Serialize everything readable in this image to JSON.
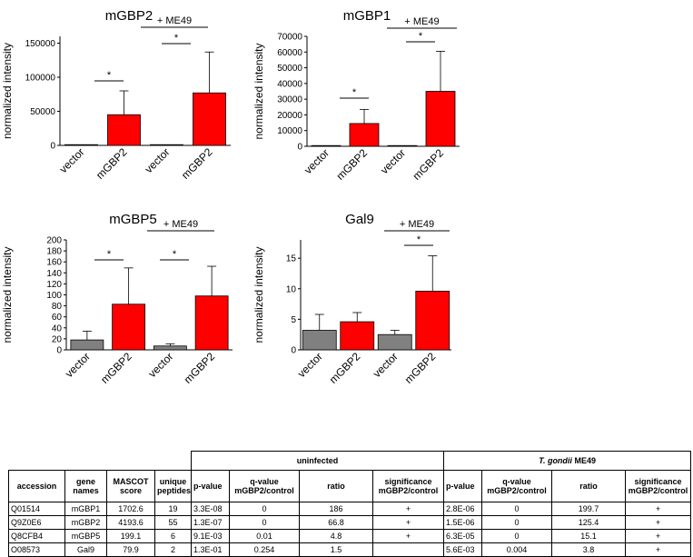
{
  "chart_data": [
    {
      "type": "bar",
      "title": "mGBP2",
      "ylabel": "normalized intensity",
      "categories": [
        "vector",
        "mGBP2",
        "vector",
        "mGBP2"
      ],
      "values": [
        500,
        45000,
        800,
        77000
      ],
      "errors": [
        0,
        35000,
        0,
        60000
      ],
      "colors": [
        "#808080",
        "#ff0000",
        "#808080",
        "#ff0000"
      ],
      "ylim": [
        0,
        160000
      ],
      "yticks": [
        0,
        50000,
        100000,
        150000
      ],
      "group_label": "+ ME49",
      "significance": [
        {
          "pair": [
            0,
            1
          ],
          "label": "*"
        },
        {
          "pair": [
            2,
            3
          ],
          "label": "*"
        }
      ]
    },
    {
      "type": "bar",
      "title": "mGBP1",
      "ylabel": "normalized intensity",
      "categories": [
        "vector",
        "mGBP2",
        "vector",
        "mGBP2"
      ],
      "values": [
        100,
        14500,
        300,
        35000
      ],
      "errors": [
        0,
        9000,
        0,
        25500
      ],
      "colors": [
        "#808080",
        "#ff0000",
        "#808080",
        "#ff0000"
      ],
      "ylim": [
        0,
        70000
      ],
      "yticks": [
        0,
        10000,
        20000,
        30000,
        40000,
        50000,
        60000,
        70000
      ],
      "group_label": "+ ME49",
      "significance": [
        {
          "pair": [
            0,
            1
          ],
          "label": "*"
        },
        {
          "pair": [
            2,
            3
          ],
          "label": "*"
        }
      ]
    },
    {
      "type": "bar",
      "title": "mGBP5",
      "ylabel": "normalized intensity",
      "categories": [
        "vector",
        "mGBP2",
        "vector",
        "mGBP2"
      ],
      "values": [
        18,
        83,
        7,
        98
      ],
      "errors": [
        16,
        66,
        4,
        54
      ],
      "colors": [
        "#808080",
        "#ff0000",
        "#808080",
        "#ff0000"
      ],
      "ylim": [
        0,
        200
      ],
      "yticks": [
        0,
        20,
        40,
        60,
        80,
        100,
        120,
        140,
        160,
        180,
        200
      ],
      "group_label": "+ ME49",
      "significance": [
        {
          "pair": [
            0,
            1
          ],
          "label": "*"
        },
        {
          "pair": [
            2,
            3
          ],
          "label": "*"
        }
      ]
    },
    {
      "type": "bar",
      "title": "Gal9",
      "ylabel": "normalized intensity",
      "categories": [
        "vector",
        "mGBP2",
        "vector",
        "mGBP2"
      ],
      "values": [
        3.2,
        4.6,
        2.5,
        9.6
      ],
      "errors": [
        2.6,
        1.5,
        0.7,
        5.8
      ],
      "colors": [
        "#808080",
        "#ff0000",
        "#808080",
        "#ff0000"
      ],
      "ylim": [
        0,
        18
      ],
      "yticks": [
        0,
        5,
        10,
        15
      ],
      "group_label": "+ ME49",
      "significance": [
        {
          "pair": [
            2,
            3
          ],
          "label": "*"
        }
      ]
    },
    {
      "type": "table",
      "group_headers": [
        "uninfected",
        "T. gondii",
        "ME49"
      ],
      "columns": [
        "accession",
        "gene names",
        "MASCOT score",
        "unique peptides",
        "p-value",
        "q-value mGBP2/control",
        "ratio",
        "significance mGBP2/control",
        "p-value",
        "q-value mGBP2/control",
        "ratio",
        "significance mGBP2/control"
      ],
      "rows": [
        [
          "Q01514",
          "mGBP1",
          "1702.6",
          "19",
          "3.3E-08",
          "0",
          "186",
          "+",
          "2.8E-06",
          "0",
          "199.7",
          "+"
        ],
        [
          "Q9Z0E6",
          "mGBP2",
          "4193.6",
          "55",
          "1.3E-07",
          "0",
          "66.8",
          "+",
          "1.5E-06",
          "0",
          "125.4",
          "+"
        ],
        [
          "Q8CFB4",
          "mGBP5",
          "199.1",
          "6",
          "9.1E-03",
          "0.01",
          "4.8",
          "+",
          "6.3E-05",
          "0",
          "15.1",
          "+"
        ],
        [
          "O08573",
          "Gal9",
          "79.9",
          "2",
          "1.3E-01",
          "0.254",
          "1.5",
          "",
          "5.6E-03",
          "0.004",
          "3.8",
          "+"
        ]
      ]
    }
  ]
}
